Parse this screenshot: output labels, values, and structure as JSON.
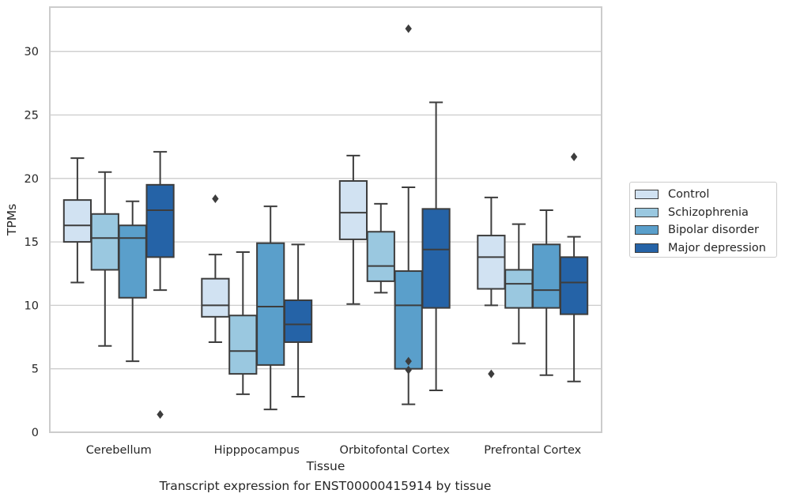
{
  "caption": "Transcript expression for ENST00000415914 by tissue",
  "chart_data": {
    "type": "boxplot",
    "xlabel": "Tissue",
    "ylabel": "TPMs",
    "ylim": [
      0,
      33.5
    ],
    "yticks": [
      0,
      5,
      10,
      15,
      20,
      25,
      30
    ],
    "grid": "horizontal",
    "legend_position": "outside-right",
    "categories": [
      "Cerebellum",
      "Hipppocampus",
      "Orbitofontal Cortex",
      "Prefrontal Cortex"
    ],
    "series": [
      {
        "name": "Control",
        "color": "#d1e2f2",
        "boxes": [
          {
            "whisker_low": 11.8,
            "q1": 15.0,
            "median": 16.3,
            "q3": 18.3,
            "whisker_high": 21.6,
            "outliers": []
          },
          {
            "whisker_low": 7.1,
            "q1": 9.1,
            "median": 10.0,
            "q3": 12.1,
            "whisker_high": 14.0,
            "outliers": [
              18.4
            ]
          },
          {
            "whisker_low": 10.1,
            "q1": 15.2,
            "median": 17.3,
            "q3": 19.8,
            "whisker_high": 21.8,
            "outliers": []
          },
          {
            "whisker_low": 10.0,
            "q1": 11.3,
            "median": 13.8,
            "q3": 15.5,
            "whisker_high": 18.5,
            "outliers": [
              4.6
            ]
          }
        ]
      },
      {
        "name": "Schizophrenia",
        "color": "#9ac8e0",
        "boxes": [
          {
            "whisker_low": 6.8,
            "q1": 12.8,
            "median": 15.3,
            "q3": 17.2,
            "whisker_high": 20.5,
            "outliers": []
          },
          {
            "whisker_low": 3.0,
            "q1": 4.6,
            "median": 6.4,
            "q3": 9.2,
            "whisker_high": 14.2,
            "outliers": []
          },
          {
            "whisker_low": 11.0,
            "q1": 11.9,
            "median": 13.1,
            "q3": 15.8,
            "whisker_high": 18.0,
            "outliers": []
          },
          {
            "whisker_low": 7.0,
            "q1": 9.8,
            "median": 11.7,
            "q3": 12.8,
            "whisker_high": 16.4,
            "outliers": []
          }
        ]
      },
      {
        "name": "Bipolar disorder",
        "color": "#5a9fcb",
        "boxes": [
          {
            "whisker_low": 5.6,
            "q1": 10.6,
            "median": 15.3,
            "q3": 16.3,
            "whisker_high": 18.2,
            "outliers": []
          },
          {
            "whisker_low": 1.8,
            "q1": 5.3,
            "median": 9.9,
            "q3": 14.9,
            "whisker_high": 17.8,
            "outliers": []
          },
          {
            "whisker_low": 2.2,
            "q1": 5.0,
            "median": 10.0,
            "q3": 12.7,
            "whisker_high": 19.3,
            "outliers": [
              5.6,
              4.9,
              31.8
            ]
          },
          {
            "whisker_low": 4.5,
            "q1": 9.8,
            "median": 11.2,
            "q3": 14.8,
            "whisker_high": 17.5,
            "outliers": []
          }
        ]
      },
      {
        "name": "Major depression",
        "color": "#2563a7",
        "boxes": [
          {
            "whisker_low": 11.2,
            "q1": 13.8,
            "median": 17.5,
            "q3": 19.5,
            "whisker_high": 22.1,
            "outliers": [
              1.4
            ]
          },
          {
            "whisker_low": 2.8,
            "q1": 7.1,
            "median": 8.5,
            "q3": 10.4,
            "whisker_high": 14.8,
            "outliers": []
          },
          {
            "whisker_low": 3.3,
            "q1": 9.8,
            "median": 14.4,
            "q3": 17.6,
            "whisker_high": 26.0,
            "outliers": []
          },
          {
            "whisker_low": 4.0,
            "q1": 9.3,
            "median": 11.8,
            "q3": 13.8,
            "whisker_high": 15.4,
            "outliers": [
              21.7
            ]
          }
        ]
      }
    ]
  }
}
